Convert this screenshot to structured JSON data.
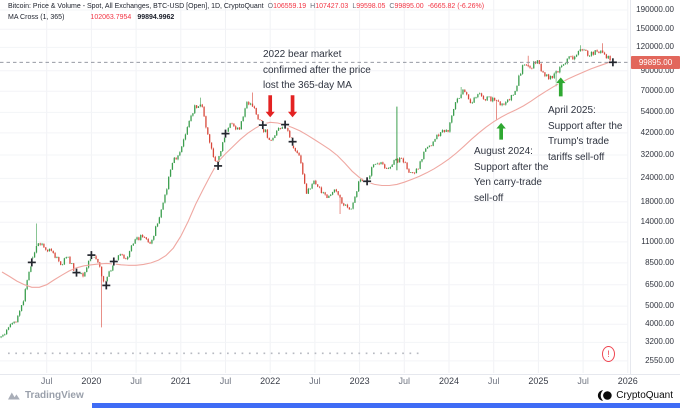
{
  "header": {
    "title": "Bitcoin: Price & Volume - Spot, All Exchanges, BTC-USD [Open], 1D, CryptoQuant",
    "ohlc": {
      "o_label": "O",
      "o_value": "106559.19",
      "h_label": "H",
      "h_value": "107427.03",
      "l_label": "L",
      "l_value": "99598.05",
      "c_label": "C",
      "c_value": "99895.00",
      "change": "-6665.82 (-6.26%)"
    },
    "indicator": {
      "name": "MA Cross (1, 365)",
      "value_fast": "102063.7954",
      "value_slow": "99894.9962"
    }
  },
  "annotations": {
    "bear_2022": {
      "text": "2022 bear market\nconfirmed after the price\nlost the 365-day MA"
    },
    "aug_2024": {
      "text": "August 2024:\nSupport after the\nYen carry-trade\nsell-off"
    },
    "apr_2025": {
      "text": "April 2025:\nSupport after the\nTrump's trade\ntariffs sell-off"
    }
  },
  "branding": {
    "tradingview": "TradingView",
    "cryptoquant": "CryptoQuant"
  },
  "icons": {
    "warning_glyph": "!"
  },
  "colors": {
    "up": "#3b9e4e",
    "down": "#d8473a",
    "ma": "#efa8a2",
    "accent_red": "#f23645",
    "arrow_red": "#e32222",
    "arrow_green": "#2fa832",
    "label_bg": "#e2675c",
    "grid": "#f1f2f5"
  },
  "chart_data": {
    "type": "candlestick",
    "title": "Bitcoin: Price & Volume - Spot, All Exchanges, BTC-USD [Open], 1D, CryptoQuant",
    "scale": "log",
    "legend": [
      "BTC-USD daily candles",
      "MA Cross (1, 365) — 365-day moving average"
    ],
    "months": [
      "2019-01",
      "2019-02",
      "2019-03",
      "2019-04",
      "2019-05",
      "2019-06",
      "2019-07",
      "2019-08",
      "2019-09",
      "2019-10",
      "2019-11",
      "2019-12",
      "2020-01",
      "2020-02",
      "2020-03",
      "2020-04",
      "2020-05",
      "2020-06",
      "2020-07",
      "2020-08",
      "2020-09",
      "2020-10",
      "2020-11",
      "2020-12",
      "2021-01",
      "2021-02",
      "2021-03",
      "2021-04",
      "2021-05",
      "2021-06",
      "2021-07",
      "2021-08",
      "2021-09",
      "2021-10",
      "2021-11",
      "2021-12",
      "2022-01",
      "2022-02",
      "2022-03",
      "2022-04",
      "2022-05",
      "2022-06",
      "2022-07",
      "2022-08",
      "2022-09",
      "2022-10",
      "2022-11",
      "2022-12",
      "2023-01",
      "2023-02",
      "2023-03",
      "2023-04",
      "2023-05",
      "2023-06",
      "2023-07",
      "2023-08",
      "2023-09",
      "2023-10",
      "2023-11",
      "2023-12",
      "2024-01",
      "2024-02",
      "2024-03",
      "2024-04",
      "2024-05",
      "2024-06",
      "2024-07",
      "2024-08",
      "2024-09",
      "2024-10",
      "2024-11",
      "2024-12",
      "2025-01",
      "2025-02",
      "2025-03",
      "2025-04",
      "2025-05",
      "2025-06",
      "2025-07",
      "2025-08",
      "2025-09",
      "2025-10",
      "2025-11"
    ],
    "close": [
      3450,
      3850,
      4100,
      5300,
      8550,
      10800,
      10000,
      9600,
      8300,
      9150,
      7550,
      7200,
      9350,
      8550,
      6450,
      8650,
      9450,
      9140,
      11350,
      11650,
      10780,
      13800,
      19700,
      29000,
      33100,
      45100,
      58900,
      57800,
      37300,
      28000,
      41600,
      47100,
      43800,
      61300,
      57000,
      46200,
      38500,
      43200,
      46500,
      37700,
      31800,
      19900,
      23300,
      20050,
      19400,
      20500,
      17200,
      16550,
      23100,
      23150,
      28500,
      29250,
      27200,
      30480,
      29230,
      25930,
      26970,
      34650,
      37720,
      42270,
      42580,
      61200,
      71330,
      60640,
      67540,
      62680,
      64630,
      58970,
      63330,
      70220,
      96450,
      93430,
      102400,
      84350,
      82550,
      94180,
      104600,
      107140,
      115760,
      108240,
      114000,
      110100,
      99895
    ],
    "ma365": [
      7600,
      7200,
      6800,
      6500,
      6300,
      6300,
      6500,
      6900,
      7300,
      7700,
      8000,
      8200,
      8300,
      8400,
      8450,
      8400,
      8300,
      8250,
      8250,
      8350,
      8500,
      8800,
      9300,
      10200,
      11800,
      14200,
      17500,
      21000,
      25000,
      29500,
      32500,
      35500,
      38800,
      41800,
      44500,
      46800,
      47800,
      47400,
      46300,
      44800,
      43000,
      40800,
      38500,
      36300,
      34200,
      31800,
      29000,
      26200,
      24200,
      23000,
      22300,
      22000,
      22000,
      22300,
      22900,
      23700,
      24600,
      25700,
      27000,
      28600,
      30500,
      32800,
      35600,
      38800,
      42000,
      45200,
      48200,
      51000,
      53500,
      55800,
      58500,
      62000,
      66000,
      70000,
      74000,
      77800,
      81500,
      85000,
      88500,
      92000,
      95200,
      98200,
      102000
    ],
    "open_first": 3700,
    "wick_overrides": {
      "2019-06": {
        "hi": 13800
      },
      "2020-03": {
        "lo": 3850
      },
      "2021-04": {
        "hi": 64800
      },
      "2021-11": {
        "hi": 69000
      },
      "2022-11": {
        "lo": 15500
      },
      "2024-03": {
        "hi": 73800
      },
      "2024-08": {
        "lo": 49500
      },
      "2024-12": {
        "hi": 108300
      },
      "2025-04": {
        "lo": 74500
      },
      "2025-07": {
        "hi": 123200
      },
      "2025-10": {
        "hi": 126200
      }
    },
    "x_ticks": [
      {
        "month": "2019-07",
        "label": "Jul"
      },
      {
        "month": "2020-01",
        "label": "2020"
      },
      {
        "month": "2020-07",
        "label": "Jul"
      },
      {
        "month": "2021-01",
        "label": "2021"
      },
      {
        "month": "2021-07",
        "label": "Jul"
      },
      {
        "month": "2022-01",
        "label": "2022"
      },
      {
        "month": "2022-07",
        "label": "Jul"
      },
      {
        "month": "2023-01",
        "label": "2023"
      },
      {
        "month": "2023-07",
        "label": "Jul"
      },
      {
        "month": "2024-01",
        "label": "2024"
      },
      {
        "month": "2024-07",
        "label": "Jul"
      },
      {
        "month": "2025-01",
        "label": "2025"
      },
      {
        "month": "2025-07",
        "label": "Jul"
      },
      {
        "month": "2026-01",
        "label": "2026"
      }
    ],
    "y_ticks": [
      {
        "price": 190000,
        "label": "190000.00"
      },
      {
        "price": 150000,
        "label": "150000.00"
      },
      {
        "price": 120000,
        "label": "120000.00"
      },
      {
        "price": 90000,
        "label": "90000.00"
      },
      {
        "price": 70000,
        "label": "70000.00"
      },
      {
        "price": 54000,
        "label": "54000.00"
      },
      {
        "price": 42000,
        "label": "42000.00"
      },
      {
        "price": 32000,
        "label": "32000.00"
      },
      {
        "price": 24000,
        "label": "24000.00"
      },
      {
        "price": 18000,
        "label": "18000.00"
      },
      {
        "price": 14000,
        "label": "14000.00"
      },
      {
        "price": 11000,
        "label": "11000.00"
      },
      {
        "price": 8500,
        "label": "8500.00"
      },
      {
        "price": 6500,
        "label": "6500.00"
      },
      {
        "price": 5000,
        "label": "5000.00"
      },
      {
        "price": 4000,
        "label": "4000.00"
      },
      {
        "price": 3200,
        "label": "3200.00"
      },
      {
        "price": 2550,
        "label": "2550.00"
      }
    ],
    "last_price": {
      "value": 99895.0,
      "label": "99895.00"
    },
    "anomaly_spike": {
      "month": "2023-06",
      "from": 26500,
      "to": 58000
    },
    "volume_row": {
      "price": 2800,
      "from": "2019-01",
      "to": "2023-09"
    },
    "arrows": [
      {
        "month": "2022-01",
        "dir": "down",
        "tip": 50500,
        "tail": 67000,
        "color_key": "arrow_red"
      },
      {
        "month": "2022-04",
        "dir": "down",
        "tip": 50500,
        "tail": 67000,
        "color_key": "arrow_red"
      },
      {
        "month": "2024-08",
        "dir": "up",
        "tip": 47800,
        "tail": 38500,
        "color_key": "arrow_green"
      },
      {
        "month": "2025-04",
        "dir": "up",
        "tip": 83500,
        "tail": 65500,
        "color_key": "arrow_green"
      }
    ]
  }
}
